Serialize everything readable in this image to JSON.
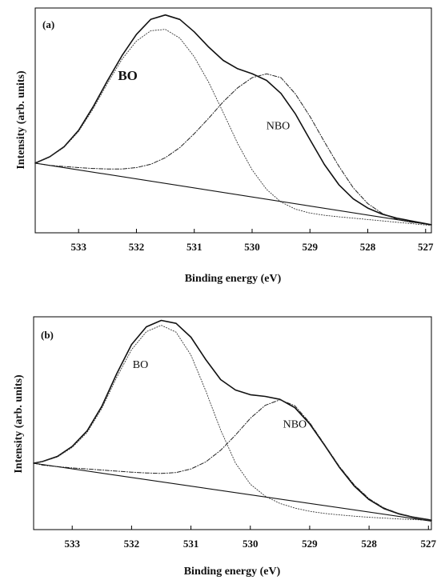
{
  "chart_data": [
    {
      "type": "line",
      "panel_label": "(a)",
      "xlabel": "Binding energy (eV)",
      "ylabel": "Intensity (arb. units)",
      "xlim": [
        533.75,
        526.9
      ],
      "x_reversed": true,
      "ylim": [
        0,
        1
      ],
      "xticks": [
        533,
        532,
        531,
        530,
        529,
        528,
        527
      ],
      "y_ticks_shown": false,
      "grid": false,
      "series": [
        {
          "role": "measured-and-fit",
          "style": "solid",
          "x": [
            533.75,
            533.5,
            533.25,
            533,
            532.75,
            532.5,
            532.25,
            532,
            531.75,
            531.5,
            531.25,
            531,
            530.75,
            530.5,
            530.25,
            530,
            529.75,
            529.5,
            529.25,
            529,
            528.75,
            528.5,
            528.25,
            528,
            527.75,
            527.5,
            527.25,
            527,
            526.9
          ],
          "y": [
            0.31,
            0.338,
            0.383,
            0.456,
            0.56,
            0.677,
            0.788,
            0.883,
            0.95,
            0.969,
            0.949,
            0.894,
            0.826,
            0.767,
            0.73,
            0.708,
            0.678,
            0.62,
            0.528,
            0.415,
            0.304,
            0.214,
            0.151,
            0.11,
            0.083,
            0.065,
            0.053,
            0.041,
            0.036
          ]
        },
        {
          "name": "BO",
          "style": "dotted",
          "x": [
            533.75,
            533.5,
            533.25,
            533,
            532.75,
            532.5,
            532.25,
            532,
            531.75,
            531.5,
            531.25,
            531,
            530.75,
            530.5,
            530.25,
            530,
            529.75,
            529.5,
            529.25,
            529,
            528.75,
            528.5,
            528.25,
            528,
            527.75,
            527.5,
            527.25,
            527,
            526.9
          ],
          "y": [
            0.31,
            0.337,
            0.38,
            0.451,
            0.551,
            0.665,
            0.772,
            0.853,
            0.899,
            0.905,
            0.866,
            0.783,
            0.669,
            0.535,
            0.398,
            0.28,
            0.193,
            0.137,
            0.105,
            0.088,
            0.078,
            0.071,
            0.065,
            0.059,
            0.053,
            0.047,
            0.041,
            0.035,
            0.033
          ]
        },
        {
          "name": "NBO",
          "style": "dash-dot",
          "x": [
            533.75,
            533.5,
            533.25,
            533,
            532.75,
            532.5,
            532.25,
            532,
            531.75,
            531.5,
            531.25,
            531,
            530.75,
            530.5,
            530.25,
            530,
            529.75,
            529.5,
            529.25,
            529,
            528.75,
            528.5,
            528.25,
            528,
            527.75,
            527.5,
            527.25,
            527,
            526.9
          ],
          "y": [
            0.31,
            0.3,
            0.295,
            0.29,
            0.286,
            0.284,
            0.284,
            0.29,
            0.305,
            0.334,
            0.379,
            0.441,
            0.51,
            0.583,
            0.645,
            0.69,
            0.707,
            0.69,
            0.617,
            0.518,
            0.405,
            0.296,
            0.2,
            0.13,
            0.086,
            0.06,
            0.047,
            0.041,
            0.036
          ]
        },
        {
          "name": "background",
          "style": "solid-thin",
          "x": [
            533.75,
            526.9
          ],
          "y": [
            0.31,
            0.035
          ]
        }
      ],
      "annotations": [
        {
          "text": "BO",
          "x": 532.15,
          "y": 0.68,
          "bold": true,
          "size": 17
        },
        {
          "text": "NBO",
          "x": 529.55,
          "y": 0.46,
          "bold": false,
          "size": 14
        }
      ]
    },
    {
      "type": "line",
      "panel_label": "(b)",
      "xlabel": "Binding energy (eV)",
      "ylabel": "Intensity (arb. units)",
      "xlim": [
        533.65,
        526.95
      ],
      "x_reversed": true,
      "ylim": [
        0,
        1
      ],
      "xticks": [
        533,
        532,
        531,
        530,
        529,
        528,
        527
      ],
      "y_ticks_shown": false,
      "grid": false,
      "series": [
        {
          "role": "measured-and-fit",
          "style": "solid",
          "x": [
            533.65,
            533.5,
            533.25,
            533,
            532.75,
            532.5,
            532.25,
            532,
            531.75,
            531.5,
            531.25,
            531,
            530.75,
            530.5,
            530.25,
            530,
            529.75,
            529.5,
            529.25,
            529,
            528.75,
            528.5,
            528.25,
            528,
            527.75,
            527.5,
            527.25,
            527,
            526.95
          ],
          "y": [
            0.312,
            0.32,
            0.344,
            0.391,
            0.464,
            0.58,
            0.733,
            0.87,
            0.953,
            0.983,
            0.969,
            0.904,
            0.799,
            0.705,
            0.656,
            0.634,
            0.626,
            0.612,
            0.573,
            0.497,
            0.397,
            0.293,
            0.205,
            0.141,
            0.099,
            0.074,
            0.058,
            0.047,
            0.044
          ]
        },
        {
          "name": "BO",
          "style": "dotted",
          "x": [
            533.65,
            533.5,
            533.25,
            533,
            532.75,
            532.5,
            532.25,
            532,
            531.75,
            531.5,
            531.25,
            531,
            530.75,
            530.5,
            530.25,
            530,
            529.75,
            529.5,
            529.25,
            529,
            528.75,
            528.5,
            528.25,
            528,
            527.75,
            527.5,
            527.25,
            527,
            526.95
          ],
          "y": [
            0.312,
            0.319,
            0.341,
            0.386,
            0.456,
            0.57,
            0.716,
            0.846,
            0.93,
            0.96,
            0.928,
            0.82,
            0.652,
            0.468,
            0.313,
            0.213,
            0.157,
            0.123,
            0.101,
            0.086,
            0.076,
            0.069,
            0.063,
            0.058,
            0.054,
            0.05,
            0.047,
            0.044,
            0.043
          ]
        },
        {
          "name": "NBO",
          "style": "dash-dot",
          "x": [
            533.65,
            533.5,
            533.25,
            533,
            532.75,
            532.5,
            532.25,
            532,
            531.75,
            531.5,
            531.25,
            531,
            530.75,
            530.5,
            530.25,
            530,
            529.75,
            529.5,
            529.25,
            529,
            528.75,
            528.5,
            528.25,
            528,
            527.75,
            527.5,
            527.25,
            527,
            526.95
          ],
          "y": [
            0.312,
            0.303,
            0.296,
            0.29,
            0.285,
            0.28,
            0.275,
            0.27,
            0.266,
            0.264,
            0.268,
            0.285,
            0.318,
            0.373,
            0.444,
            0.523,
            0.584,
            0.61,
            0.582,
            0.503,
            0.4,
            0.297,
            0.21,
            0.145,
            0.102,
            0.076,
            0.059,
            0.047,
            0.044
          ]
        },
        {
          "name": "background",
          "style": "solid-thin",
          "x": [
            533.65,
            526.95
          ],
          "y": [
            0.312,
            0.04
          ]
        }
      ],
      "annotations": [
        {
          "text": "BO",
          "x": 531.85,
          "y": 0.76,
          "bold": false,
          "size": 14
        },
        {
          "text": "NBO",
          "x": 529.25,
          "y": 0.48,
          "bold": false,
          "size": 14
        }
      ]
    }
  ]
}
